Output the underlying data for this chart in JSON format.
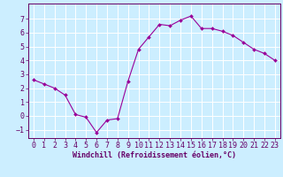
{
  "x": [
    0,
    1,
    2,
    3,
    4,
    5,
    6,
    7,
    8,
    9,
    10,
    11,
    12,
    13,
    14,
    15,
    16,
    17,
    18,
    19,
    20,
    21,
    22,
    23
  ],
  "y": [
    2.6,
    2.3,
    2.0,
    1.5,
    0.1,
    -0.1,
    -1.2,
    -0.3,
    -0.2,
    2.5,
    4.8,
    5.7,
    6.6,
    6.5,
    6.9,
    7.2,
    6.3,
    6.3,
    6.1,
    5.8,
    5.3,
    4.8,
    4.5,
    4.0
  ],
  "line_color": "#990099",
  "marker": "D",
  "marker_size": 2.0,
  "bg_color": "#cceeff",
  "grid_color": "#ffffff",
  "axis_color": "#660066",
  "xlabel": "Windchill (Refroidissement éolien,°C)",
  "xlim": [
    -0.5,
    23.5
  ],
  "ylim": [
    -1.6,
    8.1
  ],
  "yticks": [
    -1,
    0,
    1,
    2,
    3,
    4,
    5,
    6,
    7
  ],
  "xticks": [
    0,
    1,
    2,
    3,
    4,
    5,
    6,
    7,
    8,
    9,
    10,
    11,
    12,
    13,
    14,
    15,
    16,
    17,
    18,
    19,
    20,
    21,
    22,
    23
  ],
  "label_fontsize": 6.0,
  "tick_fontsize": 6.0
}
